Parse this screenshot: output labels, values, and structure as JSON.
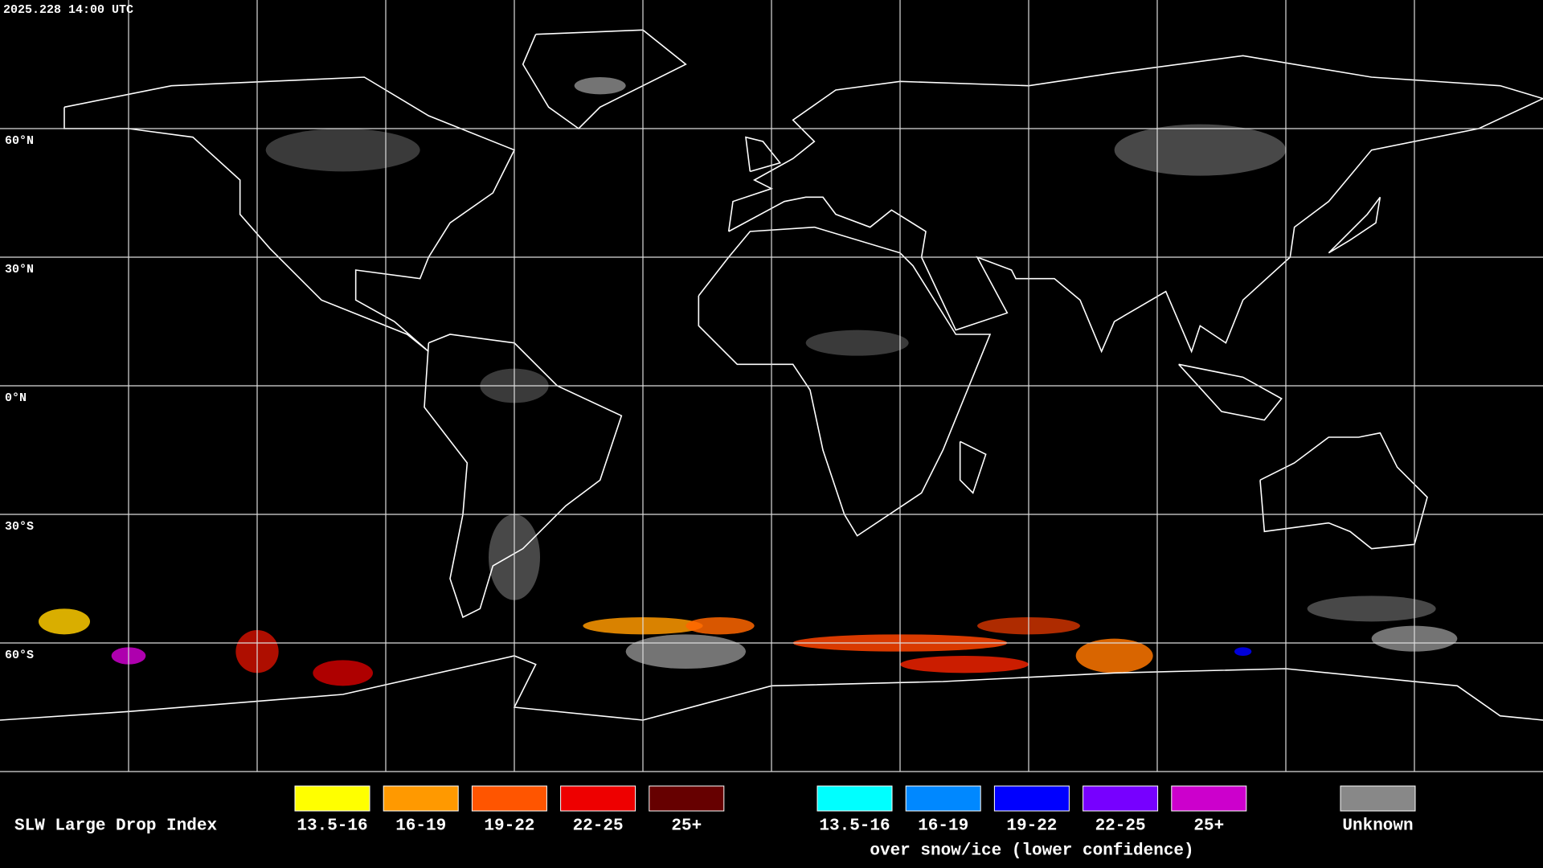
{
  "header": {
    "timestamp": "2025.228 14:00 UTC"
  },
  "map": {
    "latitude_labels": [
      "60°N",
      "30°N",
      "0°N",
      "30°S",
      "60°S"
    ]
  },
  "legend": {
    "title": "SLW Large Drop Index",
    "groups": [
      {
        "items": [
          {
            "label": "13.5-16",
            "color": "#ffff00"
          },
          {
            "label": "16-19",
            "color": "#ff9900"
          },
          {
            "label": "19-22",
            "color": "#ff5500"
          },
          {
            "label": "22-25",
            "color": "#ee0000"
          },
          {
            "label": "25+",
            "color": "#660000"
          }
        ]
      },
      {
        "subtitle": "over snow/ice (lower confidence)",
        "items": [
          {
            "label": "13.5-16",
            "color": "#00ffff"
          },
          {
            "label": "16-19",
            "color": "#0088ff"
          },
          {
            "label": "19-22",
            "color": "#0000ff"
          },
          {
            "label": "22-25",
            "color": "#7700ff"
          },
          {
            "label": "25+",
            "color": "#cc00cc"
          }
        ]
      },
      {
        "items": [
          {
            "label": "Unknown",
            "color": "#888888"
          }
        ]
      }
    ]
  }
}
